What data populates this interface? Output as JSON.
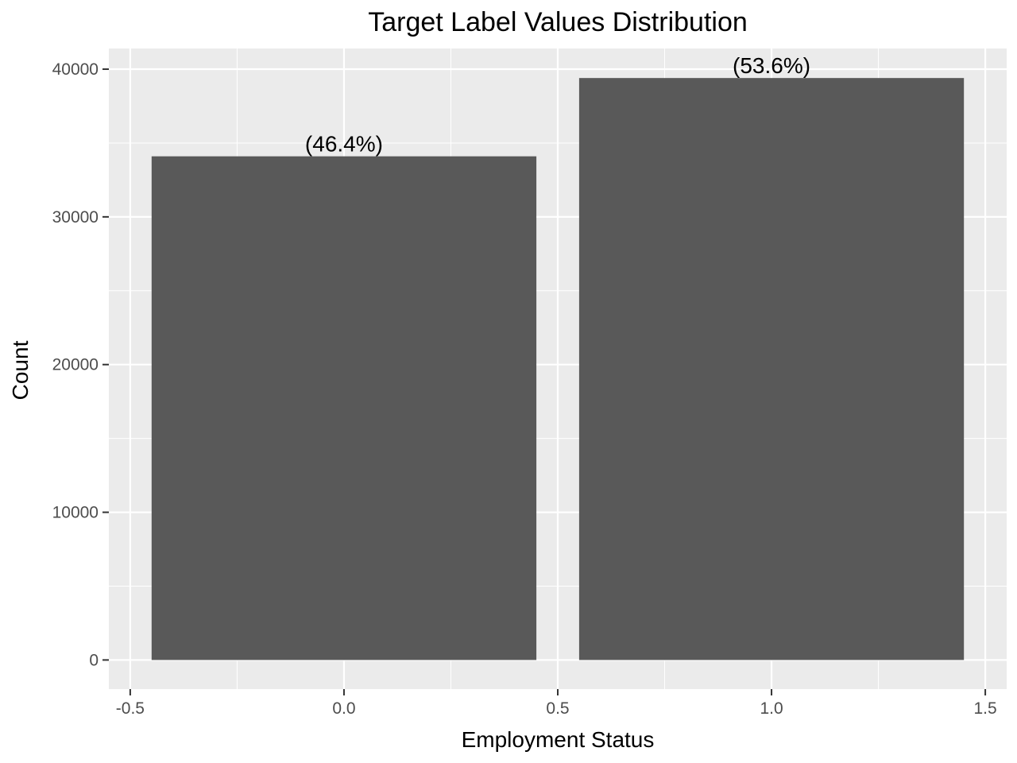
{
  "chart_data": {
    "type": "bar",
    "title": "Target Label Values Distribution",
    "xlabel": "Employment Status",
    "ylabel": "Count",
    "x": [
      0,
      1
    ],
    "values": [
      34100,
      39400
    ],
    "bar_width": 0.9,
    "labels": [
      "(46.4%)",
      "(53.6%)"
    ],
    "xlim": [
      -0.55,
      1.55
    ],
    "ylim": [
      -1970,
      41400
    ],
    "x_ticks": [
      -0.5,
      0.0,
      0.5,
      1.0,
      1.5
    ],
    "x_tick_labels": [
      "-0.5",
      "0.0",
      "0.5",
      "1.0",
      "1.5"
    ],
    "x_minor_ticks": [
      -0.25,
      0.25,
      0.75,
      1.25
    ],
    "y_ticks": [
      0,
      10000,
      20000,
      30000,
      40000
    ],
    "y_tick_labels": [
      "0",
      "10000",
      "20000",
      "30000",
      "40000"
    ],
    "y_minor_ticks": [
      5000,
      15000,
      25000,
      35000
    ],
    "grid": true,
    "legend": "none",
    "colors": {
      "bar": "#595959",
      "panel": "#ebebeb",
      "grid": "#ffffff",
      "tick": "#333333"
    }
  }
}
